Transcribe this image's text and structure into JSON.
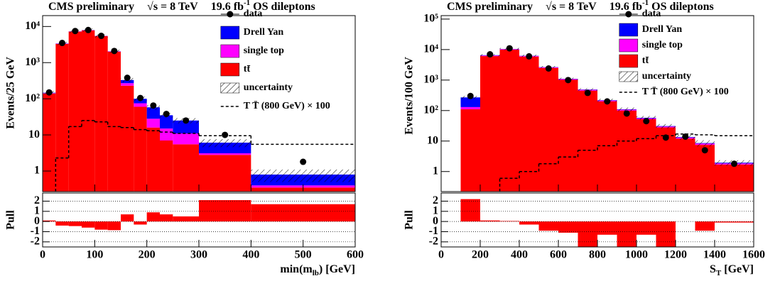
{
  "chart_data": [
    {
      "type": "histogram",
      "log_scale": true,
      "title": "CMS preliminary",
      "energy": "√s = 8 TeV",
      "lumi": "19.6 fb",
      "lumi_exponent": "-1",
      "channel": "OS dileptons",
      "ylabel": "Events/25 GeV",
      "xlabel": "min(m",
      "xlabel_subscript": "lb",
      "xlabel_unit": ") [GeV]",
      "bins": [
        0,
        25,
        50,
        75,
        100,
        125,
        150,
        175,
        200,
        225,
        250,
        300,
        400,
        600
      ],
      "xlim": [
        0,
        600
      ],
      "xticks": [
        0,
        100,
        200,
        300,
        400,
        500,
        600
      ],
      "ylim": [
        0.27,
        20000
      ],
      "yticks": [
        1,
        10,
        {
          "value": 100,
          "label": "10²"
        },
        {
          "value": 1000,
          "label": "10³"
        },
        {
          "value": 10000,
          "label": "10⁴"
        }
      ],
      "legend": "upper right",
      "series": [
        {
          "name": "tt̄",
          "color": "#ff0000",
          "values": [
            140,
            3300,
            7200,
            7800,
            5400,
            2000,
            230,
            60,
            16,
            7,
            5.5,
            2.8,
            0.35
          ]
        },
        {
          "name": "single top",
          "color": "#ff00ff",
          "values": [
            3,
            60,
            120,
            120,
            80,
            40,
            40,
            15,
            12,
            8,
            5.5,
            0.3,
            0.05
          ]
        },
        {
          "name": "Drell Yan",
          "color": "#0000ff",
          "values": [
            4,
            40,
            60,
            60,
            40,
            20,
            60,
            25,
            30,
            20,
            14,
            3,
            0.4
          ]
        }
      ],
      "data": {
        "name": "data",
        "values": [
          150,
          3500,
          7500,
          8000,
          5500,
          2100,
          380,
          105,
          65,
          38,
          25,
          10,
          1.8
        ]
      },
      "uncertainty": {
        "name": "uncertainty",
        "values": [
          15,
          350,
          750,
          800,
          550,
          210,
          45,
          15,
          9,
          5,
          4,
          1.5,
          0.3
        ]
      },
      "signal": {
        "name": "T T̄ (800 GeV) × 100",
        "values": [
          null,
          2.3,
          17,
          25,
          23,
          17,
          16,
          14,
          13,
          12,
          11,
          9.5,
          5.5
        ]
      },
      "pull": {
        "ylabel": "Pull",
        "ylim": [
          -2.5,
          2.8
        ],
        "yticks": [
          -2,
          -1,
          0,
          1,
          2
        ],
        "grid": true,
        "color": "#ff0000",
        "values": [
          0.1,
          -0.4,
          -0.45,
          -0.6,
          -0.8,
          -0.85,
          0.7,
          -0.3,
          0.9,
          0.7,
          0.5,
          2.1,
          1.7
        ]
      }
    },
    {
      "type": "histogram",
      "log_scale": true,
      "title": "CMS preliminary",
      "energy": "√s = 8 TeV",
      "lumi": "19.6 fb",
      "lumi_exponent": "-1",
      "channel": "OS dileptons",
      "ylabel": "Events/100 GeV",
      "xlabel": "S",
      "xlabel_subscript": "T",
      "xlabel_unit": " [GeV]",
      "bins": [
        100,
        200,
        300,
        400,
        500,
        600,
        700,
        800,
        900,
        1000,
        1100,
        1200,
        1300,
        1400,
        1600
      ],
      "xlim": [
        0,
        1600
      ],
      "xticks": [
        0,
        200,
        400,
        600,
        800,
        1000,
        1200,
        1400,
        1600
      ],
      "ylim": [
        0.22,
        130000
      ],
      "yticks": [
        1,
        10,
        {
          "value": 100,
          "label": "10²"
        },
        {
          "value": 1000,
          "label": "10³"
        },
        {
          "value": 10000,
          "label": "10⁴"
        },
        {
          "value": 100000,
          "label": "10⁵"
        }
      ],
      "legend": "upper right",
      "series": [
        {
          "name": "tt̄",
          "color": "#ff0000",
          "values": [
            110,
            6100,
            9900,
            5900,
            2500,
            1020,
            450,
            200,
            100,
            52,
            28,
            12,
            7.5,
            1.7
          ]
        },
        {
          "name": "single top",
          "color": "#ff00ff",
          "values": [
            20,
            300,
            450,
            300,
            130,
            60,
            30,
            14,
            7,
            4,
            2,
            1,
            0.8,
            0.15
          ]
        },
        {
          "name": "Drell Yan",
          "color": "#0000ff",
          "values": [
            140,
            150,
            150,
            80,
            40,
            20,
            10,
            5,
            3,
            2,
            1,
            0.5,
            0.3,
            0.1
          ]
        }
      ],
      "data": {
        "name": "data",
        "values": [
          300,
          7000,
          11000,
          6000,
          2400,
          1000,
          380,
          200,
          80,
          45,
          13,
          14,
          5,
          1.8
        ]
      },
      "uncertainty": {
        "name": "uncertainty",
        "values": [
          30,
          500,
          800,
          500,
          220,
          100,
          50,
          25,
          15,
          8,
          5,
          2.5,
          2,
          0.4
        ]
      },
      "signal": {
        "name": "T T̄ (800 GeV) × 100",
        "values": [
          null,
          null,
          0.6,
          1,
          1.8,
          3,
          5,
          7,
          10,
          12,
          15,
          17,
          16,
          15
        ]
      },
      "pull": {
        "ylabel": "Pull",
        "ylim": [
          -2.5,
          2.8
        ],
        "yticks": [
          -2,
          -1,
          0,
          1,
          2
        ],
        "grid": true,
        "color": "#ff0000",
        "values": [
          2.2,
          0.1,
          0.05,
          -0.3,
          -0.9,
          -1.1,
          -2.5,
          -1.3,
          -2.5,
          -1.3,
          -2.5,
          0,
          -0.9,
          -0.1
        ]
      }
    }
  ]
}
